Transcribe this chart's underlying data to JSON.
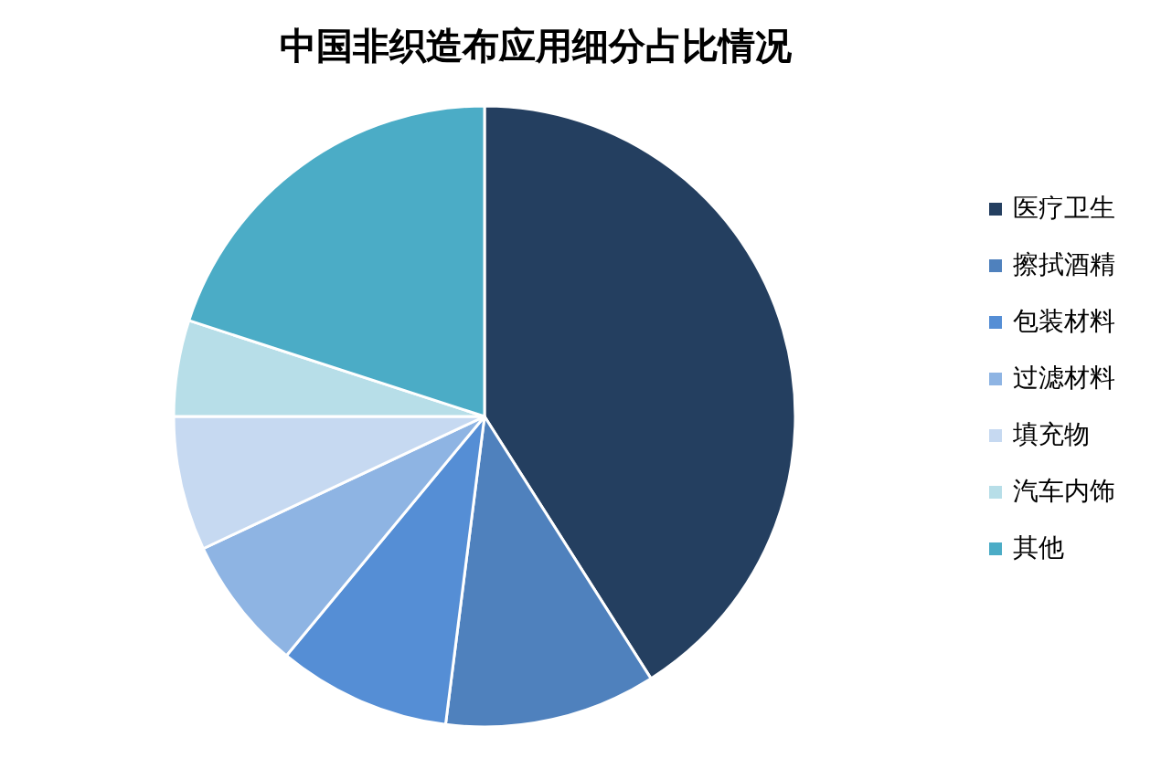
{
  "chart_data": {
    "type": "pie",
    "title": "中国非织造布应用细分占比情况",
    "categories": [
      "医疗卫生",
      "擦拭酒精",
      "包装材料",
      "过滤材料",
      "填充物",
      "汽车内饰",
      "其他"
    ],
    "values": [
      41,
      11,
      9,
      7,
      7,
      5,
      20
    ],
    "colors": [
      "#243f60",
      "#4f81bd",
      "#558ed5",
      "#8eb4e3",
      "#c6d9f1",
      "#b7dee8",
      "#4bacc6"
    ],
    "legend": "right"
  }
}
